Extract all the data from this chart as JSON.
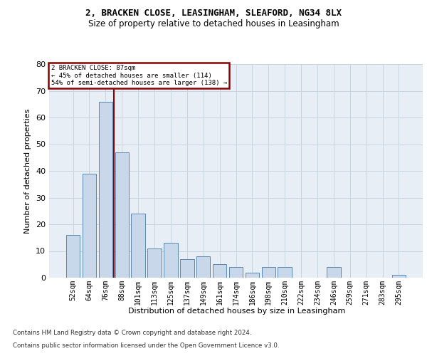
{
  "title1": "2, BRACKEN CLOSE, LEASINGHAM, SLEAFORD, NG34 8LX",
  "title2": "Size of property relative to detached houses in Leasingham",
  "xlabel": "Distribution of detached houses by size in Leasingham",
  "ylabel": "Number of detached properties",
  "categories": [
    "52sqm",
    "64sqm",
    "76sqm",
    "88sqm",
    "101sqm",
    "113sqm",
    "125sqm",
    "137sqm",
    "149sqm",
    "161sqm",
    "174sqm",
    "186sqm",
    "198sqm",
    "210sqm",
    "222sqm",
    "234sqm",
    "246sqm",
    "259sqm",
    "271sqm",
    "283sqm",
    "295sqm"
  ],
  "bar_values": [
    16,
    39,
    66,
    47,
    24,
    11,
    13,
    7,
    8,
    5,
    4,
    2,
    4,
    4,
    0,
    0,
    4,
    0,
    0,
    0,
    1
  ],
  "bar_color": "#c8d8ea",
  "bar_edge_color": "#5a88b0",
  "vline_color": "#8b0000",
  "vline_x": 2.5,
  "annotation_line1": "2 BRACKEN CLOSE: 87sqm",
  "annotation_line2": "← 45% of detached houses are smaller (114)",
  "annotation_line3": "54% of semi-detached houses are larger (138) →",
  "annotation_edge_color": "#8b0000",
  "ylim": [
    0,
    80
  ],
  "yticks": [
    0,
    10,
    20,
    30,
    40,
    50,
    60,
    70,
    80
  ],
  "grid_color": "#c8d4de",
  "bg_color": "#e8eef5",
  "footer1": "Contains HM Land Registry data © Crown copyright and database right 2024.",
  "footer2": "Contains public sector information licensed under the Open Government Licence v3.0."
}
